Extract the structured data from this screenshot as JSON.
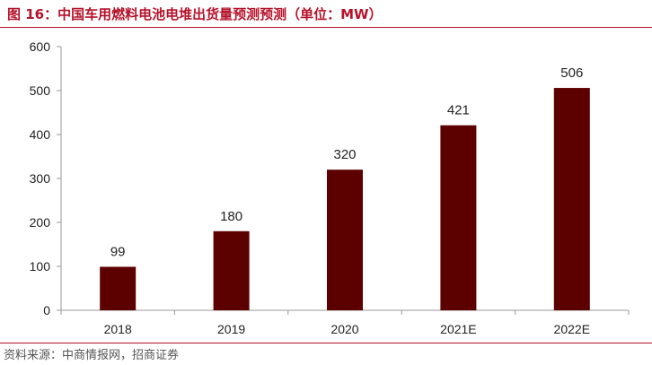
{
  "title": "图 16：中国车用燃料电池电堆出货量预测预测（单位：MW）",
  "source": "资料来源：中商情报网，招商证券",
  "colors": {
    "bar": "#5c0000",
    "accent": "#b5122a"
  },
  "chart_data": {
    "type": "bar",
    "categories": [
      "2018",
      "2019",
      "2020",
      "2021E",
      "2022E"
    ],
    "values": [
      99,
      180,
      320,
      421,
      506
    ],
    "ylim": [
      0,
      600
    ],
    "yticks": [
      0,
      100,
      200,
      300,
      400,
      500,
      600
    ],
    "grid": false,
    "xlabel": "",
    "ylabel": ""
  }
}
